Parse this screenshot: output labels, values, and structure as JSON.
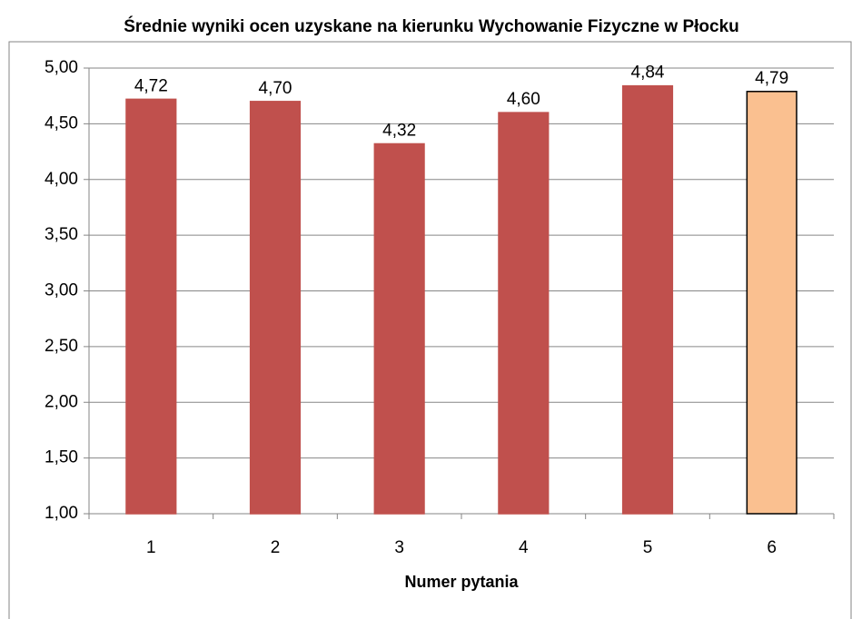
{
  "chart_data": {
    "type": "bar",
    "title": "Średnie wyniki ocen uzyskane na kierunku Wychowanie Fizyczne w Płocku",
    "x_label": "Numer pytania",
    "categories": [
      "1",
      "2",
      "3",
      "4",
      "5",
      "6"
    ],
    "values": [
      4.72,
      4.7,
      4.32,
      4.6,
      4.84,
      4.79
    ],
    "value_labels": [
      "4,72",
      "4,70",
      "4,32",
      "4,60",
      "4,84",
      "4,79"
    ],
    "colors": [
      "#c0504d",
      "#c0504d",
      "#c0504d",
      "#c0504d",
      "#c0504d",
      "#fac090"
    ],
    "edgecolors": [
      "#c0504d",
      "#c0504d",
      "#c0504d",
      "#c0504d",
      "#c0504d",
      "#000000"
    ],
    "ylim": [
      1,
      5
    ],
    "yticks": [
      {
        "value": 1,
        "label": "1,00"
      },
      {
        "value": 1.5,
        "label": "1,50"
      },
      {
        "value": 2,
        "label": "2,00"
      },
      {
        "value": 2.5,
        "label": "2,50"
      },
      {
        "value": 3,
        "label": "3,00"
      },
      {
        "value": 3.5,
        "label": "3,50"
      },
      {
        "value": 4,
        "label": "4,00"
      },
      {
        "value": 4.5,
        "label": "4,50"
      },
      {
        "value": 5,
        "label": "5,00"
      }
    ],
    "grid": true
  }
}
